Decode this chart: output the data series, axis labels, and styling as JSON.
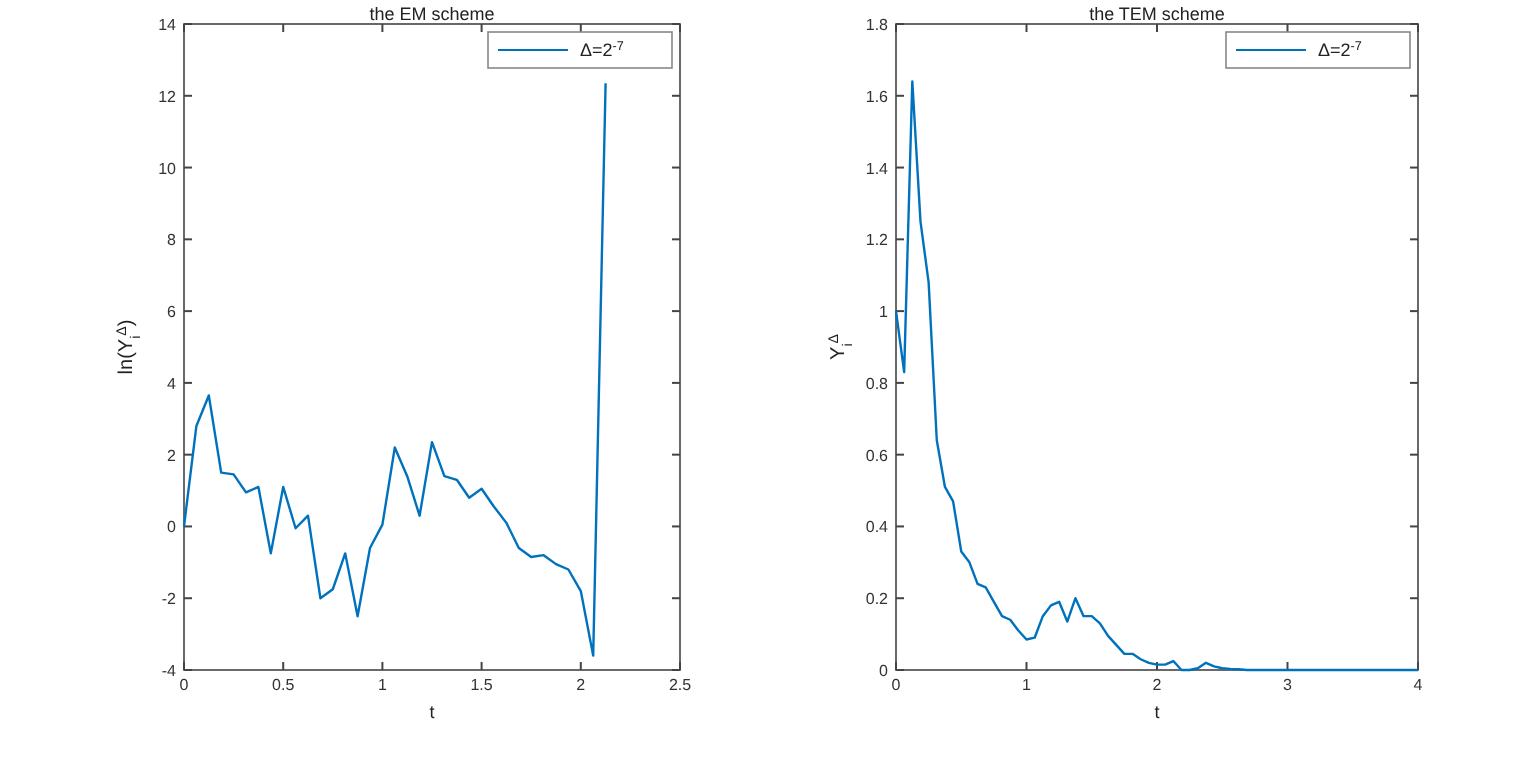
{
  "chart_data": [
    {
      "type": "line",
      "title": "the EM scheme",
      "xlabel": "t",
      "ylabel": "ln(Y$_{i}$$^{Δ}$)",
      "legend": "top right",
      "grid": false,
      "x": [
        0,
        0.0625,
        0.125,
        0.1875,
        0.25,
        0.3125,
        0.375,
        0.4375,
        0.5,
        0.5625,
        0.625,
        0.6875,
        0.75,
        0.8125,
        0.875,
        0.9375,
        1.0,
        1.0625,
        1.125,
        1.1875,
        1.25,
        1.3125,
        1.375,
        1.4375,
        1.5,
        1.5625,
        1.625,
        1.6875,
        1.75,
        1.8125,
        1.875,
        1.9375,
        2.0,
        2.0625,
        2.125
      ],
      "series": [
        {
          "name": "Δ=2$^{-7}$",
          "color": "#0072bd",
          "values": [
            0,
            2.8,
            3.65,
            1.5,
            1.45,
            0.95,
            1.1,
            -0.75,
            1.1,
            -0.05,
            0.3,
            -2.0,
            -1.75,
            -0.75,
            -2.5,
            -0.6,
            0.05,
            2.2,
            1.4,
            0.3,
            2.35,
            1.4,
            1.3,
            0.8,
            1.05,
            0.55,
            0.1,
            -0.6,
            -0.85,
            -0.8,
            -1.05,
            -1.2,
            -1.8,
            -3.6,
            12.35
          ]
        }
      ],
      "xlim": [
        0,
        2.5
      ],
      "xticks": [
        0,
        0.5,
        1,
        1.5,
        2,
        2.5
      ],
      "ylim": [
        -4,
        14
      ],
      "yticks": [
        -4,
        -2,
        0,
        2,
        4,
        6,
        8,
        10,
        12,
        14
      ]
    },
    {
      "type": "line",
      "title": "the TEM scheme",
      "xlabel": "t",
      "ylabel": "Y$_{i}$$^{Δ}$",
      "legend": "top right",
      "grid": false,
      "x": [
        0,
        0.0625,
        0.125,
        0.1875,
        0.25,
        0.3125,
        0.375,
        0.4375,
        0.5,
        0.5625,
        0.625,
        0.6875,
        0.75,
        0.8125,
        0.875,
        0.9375,
        1.0,
        1.0625,
        1.125,
        1.1875,
        1.25,
        1.3125,
        1.375,
        1.4375,
        1.5,
        1.5625,
        1.625,
        1.6875,
        1.75,
        1.8125,
        1.875,
        1.9375,
        2.0,
        2.0625,
        2.125,
        2.1875,
        2.25,
        2.3125,
        2.375,
        2.4375,
        2.5,
        2.5625,
        2.625,
        2.6875,
        3.0,
        4.0
      ],
      "series": [
        {
          "name": "Δ=2$^{-7}$",
          "color": "#0072bd",
          "values": [
            1.0,
            0.83,
            1.64,
            1.25,
            1.08,
            0.64,
            0.51,
            0.47,
            0.33,
            0.3,
            0.24,
            0.23,
            0.19,
            0.15,
            0.14,
            0.11,
            0.085,
            0.09,
            0.15,
            0.18,
            0.19,
            0.135,
            0.2,
            0.15,
            0.15,
            0.13,
            0.095,
            0.07,
            0.045,
            0.045,
            0.03,
            0.02,
            0.015,
            0.015,
            0.025,
            0.0,
            0.0,
            0.005,
            0.02,
            0.01,
            0.005,
            0.003,
            0.002,
            0,
            0,
            0
          ]
        }
      ],
      "xlim": [
        0,
        4
      ],
      "xticks": [
        0,
        1,
        2,
        3,
        4
      ],
      "ylim": [
        0,
        1.8
      ],
      "yticks": [
        0,
        0.2,
        0.4,
        0.6,
        0.8,
        1,
        1.2,
        1.4,
        1.6,
        1.8
      ]
    }
  ]
}
